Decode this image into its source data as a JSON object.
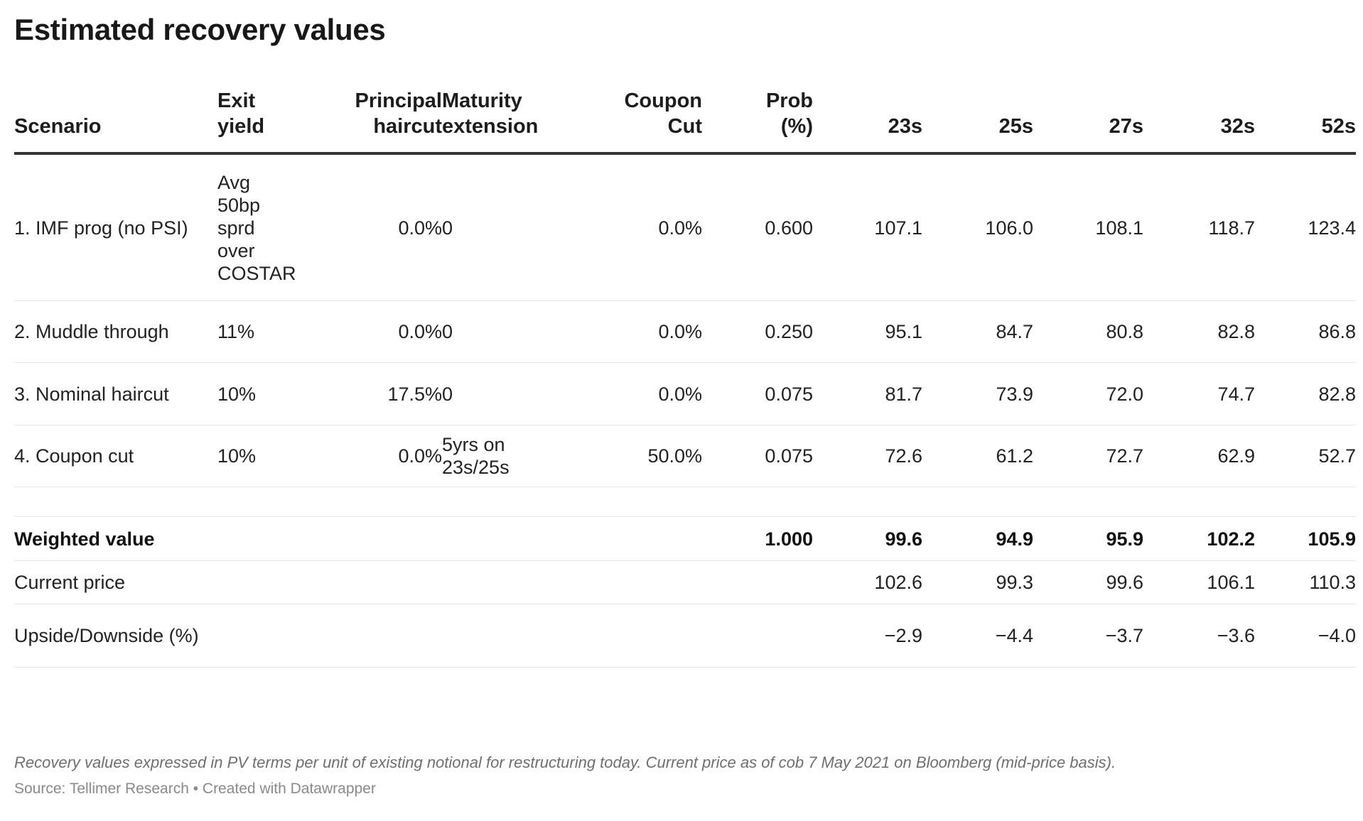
{
  "title": "Estimated recovery values",
  "chart_data": {
    "type": "table",
    "title": "Estimated recovery values",
    "columns": [
      "Scenario",
      "Exit yield",
      "Principal haircut",
      "Maturity extension",
      "Coupon Cut",
      "Prob (%)",
      "23s",
      "25s",
      "27s",
      "32s",
      "52s"
    ],
    "rows": [
      [
        "1. IMF prog (no PSI)",
        "Avg 50bp sprd over COSTAR",
        "0.0%",
        "0",
        "0.0%",
        "0.600",
        "107.1",
        "106.0",
        "108.1",
        "118.7",
        "123.4"
      ],
      [
        "2. Muddle through",
        "11%",
        "0.0%",
        "0",
        "0.0%",
        "0.250",
        "95.1",
        "84.7",
        "80.8",
        "82.8",
        "86.8"
      ],
      [
        "3. Nominal haircut",
        "10%",
        "17.5%",
        "0",
        "0.0%",
        "0.075",
        "81.7",
        "73.9",
        "72.0",
        "74.7",
        "82.8"
      ],
      [
        "4. Coupon cut",
        "10%",
        "0.0%",
        "5yrs on 23s/25s",
        "50.0%",
        "0.075",
        "72.6",
        "61.2",
        "72.7",
        "62.9",
        "52.7"
      ],
      [
        "",
        "",
        "",
        "",
        "",
        "",
        "",
        "",
        "",
        "",
        ""
      ],
      [
        "Weighted value",
        "",
        "",
        "",
        "",
        "1.000",
        "99.6",
        "94.9",
        "95.9",
        "102.2",
        "105.9"
      ],
      [
        "Current price",
        "",
        "",
        "",
        "",
        "",
        "102.6",
        "99.3",
        "99.6",
        "106.1",
        "110.3"
      ],
      [
        "Upside/Downside (%)",
        "",
        "",
        "",
        "",
        "",
        "−2.9",
        "−4.4",
        "−3.7",
        "−3.6",
        "−4.0"
      ]
    ]
  },
  "footer": {
    "note": "Recovery values expressed in PV terms per unit of existing notional for restructuring today. Current price as of cob 7 May 2021 on Bloomberg (mid-price basis).",
    "source": "Source: Tellimer Research • Created with Datawrapper"
  }
}
